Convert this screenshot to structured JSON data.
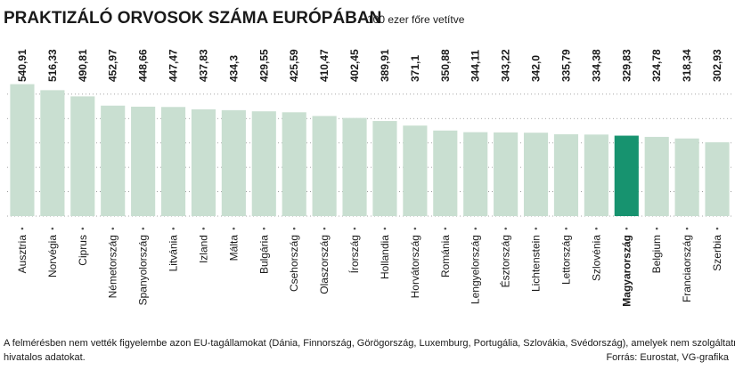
{
  "chart_data": {
    "type": "bar",
    "title": "PRAKTIZÁLÓ ORVOSOK SZÁMA EURÓPÁBAN",
    "subtitle": "100 ezer főre vetítve",
    "categories": [
      "Ausztria",
      "Norvégia",
      "Ciprus",
      "Németország",
      "Spanyolország",
      "Litvánia",
      "Izland",
      "Málta",
      "Bulgária",
      "Csehország",
      "Olaszország",
      "Írország",
      "Hollandia",
      "Horvátország",
      "Románia",
      "Lengyelország",
      "Észtország",
      "Lichtenstein",
      "Lettország",
      "Szlovénia",
      "Magyarország",
      "Belgium",
      "Franciaország",
      "Szerbia"
    ],
    "values": [
      540.91,
      516.33,
      490.81,
      452.97,
      448.66,
      447.47,
      437.83,
      434.3,
      429.55,
      425.59,
      410.47,
      402.45,
      389.91,
      371.1,
      350.88,
      344.11,
      343.22,
      342.0,
      335.79,
      334.38,
      329.83,
      324.78,
      318.34,
      302.93
    ],
    "value_labels": [
      "540,91",
      "516,33",
      "490,81",
      "452,97",
      "448,66",
      "447,47",
      "437,83",
      "434,3",
      "429,55",
      "425,59",
      "410,47",
      "402,45",
      "389,91",
      "371,1",
      "350,88",
      "344,11",
      "343,22",
      "342,0",
      "335,79",
      "334,38",
      "329,83",
      "324,78",
      "318,34",
      "302,93"
    ],
    "colors": [
      "#c9dfd1",
      "#c9dfd1",
      "#c9dfd1",
      "#c9dfd1",
      "#c9dfd1",
      "#c9dfd1",
      "#c9dfd1",
      "#c9dfd1",
      "#c9dfd1",
      "#c9dfd1",
      "#c9dfd1",
      "#c9dfd1",
      "#c9dfd1",
      "#c9dfd1",
      "#c9dfd1",
      "#c9dfd1",
      "#c9dfd1",
      "#c9dfd1",
      "#c9dfd1",
      "#c9dfd1",
      "#17936f",
      "#c9dfd1",
      "#c9dfd1",
      "#c9dfd1"
    ],
    "bold": [
      false,
      false,
      false,
      false,
      false,
      false,
      false,
      false,
      false,
      false,
      false,
      false,
      false,
      false,
      false,
      false,
      false,
      false,
      false,
      false,
      true,
      false,
      false,
      false
    ],
    "ylim": [
      0,
      700
    ],
    "grid_values": [
      0,
      100,
      200,
      300,
      400,
      500
    ],
    "grid": true,
    "note": "A felmérésben nem vették figyelembe azon EU-tagállamokat (Dánia, Finnország, Görögország, Luxemburg, Portugália, Szlovákia, Svédország), amelyek nem szolgáltatnak",
    "note_line2": "hivatalos adatokat.",
    "source": "Forrás: Eurostat, VG-grafika"
  }
}
